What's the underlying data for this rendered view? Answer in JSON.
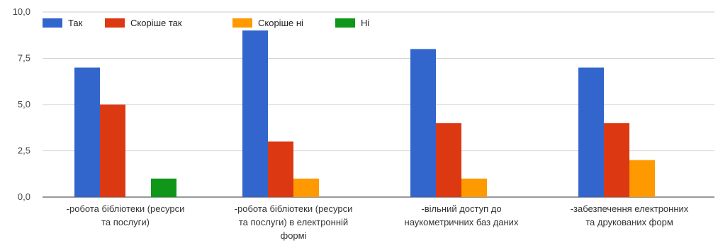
{
  "chart_data": {
    "type": "bar",
    "title": "",
    "xlabel": "",
    "ylabel": "",
    "ylim": [
      0,
      10
    ],
    "yticks": [
      "0,0",
      "2,5",
      "5,0",
      "7,5",
      "10,0"
    ],
    "grid": true,
    "legend_position": "top-left",
    "categories": [
      [
        "-робота бібліотеки (ресурси",
        "та послуги)"
      ],
      [
        "-робота бібліотеки (ресурси",
        "та послуги) в електронній",
        "формі"
      ],
      [
        "-вільний доступ до",
        "наукометричних баз даних"
      ],
      [
        "-забезпечення електронних",
        "та друкованих форм"
      ]
    ],
    "series": [
      {
        "name": "Так",
        "color": "#3366cc",
        "values": [
          7,
          9,
          8,
          7
        ]
      },
      {
        "name": "Скоріше так",
        "color": "#dc3912",
        "values": [
          5,
          3,
          4,
          4
        ]
      },
      {
        "name": "Скоріше ні",
        "color": "#ff9900",
        "values": [
          0,
          1,
          1,
          2
        ]
      },
      {
        "name": "Ні",
        "color": "#109618",
        "values": [
          1,
          0,
          0,
          0
        ]
      }
    ]
  }
}
